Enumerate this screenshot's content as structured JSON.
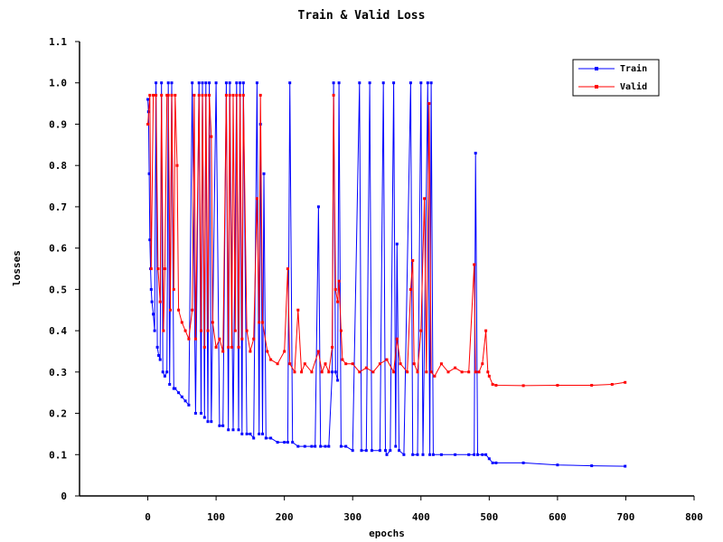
{
  "chart_data": {
    "type": "line",
    "title": "Train & Valid Loss",
    "xlabel": "epochs",
    "ylabel": "losses",
    "xlim": [
      -100,
      800
    ],
    "ylim": [
      0,
      1.1
    ],
    "xticks": [
      0,
      100,
      200,
      300,
      400,
      500,
      600,
      700,
      800
    ],
    "yticks": [
      0,
      0.1,
      0.2,
      0.3,
      0.4,
      0.5,
      0.6,
      0.7,
      0.8,
      0.9,
      1.0,
      1.1
    ],
    "ytick_labels": [
      "0",
      "0.1",
      "0.2",
      "0.3",
      "0.4",
      "0.5",
      "0.6",
      "0.7",
      "0.8",
      "0.9",
      "1.0",
      "1.1"
    ],
    "grid": false,
    "legend_position": "top-right",
    "series": [
      {
        "name": "Train",
        "color": "#0000ff",
        "points": [
          [
            0,
            0.96
          ],
          [
            1,
            0.93
          ],
          [
            2,
            0.78
          ],
          [
            3,
            0.62
          ],
          [
            4,
            0.55
          ],
          [
            5,
            0.5
          ],
          [
            6,
            0.47
          ],
          [
            8,
            0.44
          ],
          [
            10,
            0.4
          ],
          [
            12,
            1.0
          ],
          [
            14,
            0.36
          ],
          [
            16,
            0.34
          ],
          [
            18,
            0.33
          ],
          [
            20,
            1.0
          ],
          [
            22,
            0.3
          ],
          [
            25,
            0.29
          ],
          [
            28,
            0.3
          ],
          [
            30,
            1.0
          ],
          [
            32,
            0.27
          ],
          [
            35,
            1.0
          ],
          [
            38,
            0.26
          ],
          [
            40,
            0.26
          ],
          [
            45,
            0.25
          ],
          [
            50,
            0.24
          ],
          [
            55,
            0.23
          ],
          [
            60,
            0.22
          ],
          [
            65,
            1.0
          ],
          [
            70,
            0.2
          ],
          [
            75,
            1.0
          ],
          [
            78,
            0.2
          ],
          [
            80,
            1.0
          ],
          [
            83,
            0.19
          ],
          [
            85,
            1.0
          ],
          [
            88,
            0.18
          ],
          [
            90,
            1.0
          ],
          [
            93,
            0.18
          ],
          [
            100,
            1.0
          ],
          [
            105,
            0.17
          ],
          [
            110,
            0.17
          ],
          [
            115,
            1.0
          ],
          [
            118,
            0.16
          ],
          [
            120,
            1.0
          ],
          [
            125,
            0.16
          ],
          [
            130,
            1.0
          ],
          [
            133,
            0.16
          ],
          [
            135,
            1.0
          ],
          [
            138,
            0.15
          ],
          [
            140,
            1.0
          ],
          [
            145,
            0.15
          ],
          [
            150,
            0.15
          ],
          [
            155,
            0.14
          ],
          [
            160,
            1.0
          ],
          [
            163,
            0.15
          ],
          [
            165,
            0.9
          ],
          [
            168,
            0.15
          ],
          [
            170,
            0.78
          ],
          [
            173,
            0.14
          ],
          [
            180,
            0.14
          ],
          [
            190,
            0.13
          ],
          [
            200,
            0.13
          ],
          [
            205,
            0.13
          ],
          [
            208,
            1.0
          ],
          [
            212,
            0.13
          ],
          [
            220,
            0.12
          ],
          [
            230,
            0.12
          ],
          [
            240,
            0.12
          ],
          [
            245,
            0.12
          ],
          [
            250,
            0.7
          ],
          [
            253,
            0.12
          ],
          [
            260,
            0.12
          ],
          [
            265,
            0.12
          ],
          [
            270,
            0.3
          ],
          [
            272,
            1.0
          ],
          [
            275,
            0.3
          ],
          [
            278,
            0.28
          ],
          [
            280,
            1.0
          ],
          [
            283,
            0.12
          ],
          [
            290,
            0.12
          ],
          [
            300,
            0.11
          ],
          [
            310,
            1.0
          ],
          [
            313,
            0.11
          ],
          [
            320,
            0.11
          ],
          [
            325,
            1.0
          ],
          [
            328,
            0.11
          ],
          [
            340,
            0.11
          ],
          [
            345,
            1.0
          ],
          [
            348,
            0.11
          ],
          [
            350,
            0.1
          ],
          [
            355,
            0.11
          ],
          [
            360,
            1.0
          ],
          [
            363,
            0.12
          ],
          [
            365,
            0.61
          ],
          [
            368,
            0.11
          ],
          [
            375,
            0.1
          ],
          [
            385,
            1.0
          ],
          [
            388,
            0.1
          ],
          [
            395,
            0.1
          ],
          [
            400,
            1.0
          ],
          [
            403,
            0.1
          ],
          [
            410,
            1.0
          ],
          [
            413,
            0.1
          ],
          [
            415,
            1.0
          ],
          [
            418,
            0.1
          ],
          [
            430,
            0.1
          ],
          [
            450,
            0.1
          ],
          [
            470,
            0.1
          ],
          [
            478,
            0.1
          ],
          [
            480,
            0.83
          ],
          [
            483,
            0.1
          ],
          [
            490,
            0.1
          ],
          [
            495,
            0.1
          ],
          [
            500,
            0.09
          ],
          [
            505,
            0.08
          ],
          [
            510,
            0.08
          ],
          [
            550,
            0.08
          ],
          [
            600,
            0.075
          ],
          [
            650,
            0.073
          ],
          [
            699,
            0.072
          ]
        ]
      },
      {
        "name": "Valid",
        "color": "#ff0000",
        "points": [
          [
            0,
            0.9
          ],
          [
            3,
            0.97
          ],
          [
            5,
            0.55
          ],
          [
            8,
            0.97
          ],
          [
            12,
            0.97
          ],
          [
            15,
            0.55
          ],
          [
            18,
            0.47
          ],
          [
            20,
            0.97
          ],
          [
            23,
            0.4
          ],
          [
            25,
            0.55
          ],
          [
            28,
            0.97
          ],
          [
            30,
            0.97
          ],
          [
            33,
            0.45
          ],
          [
            35,
            0.97
          ],
          [
            38,
            0.5
          ],
          [
            40,
            0.97
          ],
          [
            43,
            0.8
          ],
          [
            45,
            0.45
          ],
          [
            50,
            0.42
          ],
          [
            55,
            0.4
          ],
          [
            60,
            0.38
          ],
          [
            65,
            0.45
          ],
          [
            68,
            0.97
          ],
          [
            70,
            0.38
          ],
          [
            75,
            0.97
          ],
          [
            78,
            0.4
          ],
          [
            80,
            0.97
          ],
          [
            83,
            0.36
          ],
          [
            85,
            0.97
          ],
          [
            88,
            0.4
          ],
          [
            90,
            0.97
          ],
          [
            93,
            0.87
          ],
          [
            95,
            0.42
          ],
          [
            100,
            0.36
          ],
          [
            105,
            0.38
          ],
          [
            110,
            0.35
          ],
          [
            115,
            0.97
          ],
          [
            118,
            0.36
          ],
          [
            120,
            0.97
          ],
          [
            123,
            0.36
          ],
          [
            125,
            0.97
          ],
          [
            128,
            0.4
          ],
          [
            130,
            0.97
          ],
          [
            133,
            0.36
          ],
          [
            135,
            0.97
          ],
          [
            138,
            0.38
          ],
          [
            140,
            0.97
          ],
          [
            145,
            0.4
          ],
          [
            150,
            0.35
          ],
          [
            155,
            0.38
          ],
          [
            160,
            0.72
          ],
          [
            163,
            0.42
          ],
          [
            165,
            0.97
          ],
          [
            168,
            0.42
          ],
          [
            175,
            0.35
          ],
          [
            180,
            0.33
          ],
          [
            190,
            0.32
          ],
          [
            200,
            0.35
          ],
          [
            205,
            0.55
          ],
          [
            208,
            0.32
          ],
          [
            215,
            0.3
          ],
          [
            220,
            0.45
          ],
          [
            225,
            0.3
          ],
          [
            230,
            0.32
          ],
          [
            240,
            0.3
          ],
          [
            250,
            0.35
          ],
          [
            255,
            0.3
          ],
          [
            260,
            0.32
          ],
          [
            265,
            0.3
          ],
          [
            270,
            0.36
          ],
          [
            272,
            0.97
          ],
          [
            275,
            0.5
          ],
          [
            278,
            0.47
          ],
          [
            280,
            0.52
          ],
          [
            283,
            0.4
          ],
          [
            285,
            0.33
          ],
          [
            290,
            0.32
          ],
          [
            300,
            0.32
          ],
          [
            310,
            0.3
          ],
          [
            320,
            0.31
          ],
          [
            330,
            0.3
          ],
          [
            340,
            0.32
          ],
          [
            350,
            0.33
          ],
          [
            360,
            0.3
          ],
          [
            365,
            0.38
          ],
          [
            370,
            0.32
          ],
          [
            380,
            0.3
          ],
          [
            385,
            0.5
          ],
          [
            388,
            0.57
          ],
          [
            390,
            0.32
          ],
          [
            395,
            0.3
          ],
          [
            400,
            0.4
          ],
          [
            405,
            0.72
          ],
          [
            408,
            0.3
          ],
          [
            412,
            0.95
          ],
          [
            415,
            0.3
          ],
          [
            420,
            0.29
          ],
          [
            430,
            0.32
          ],
          [
            440,
            0.3
          ],
          [
            450,
            0.31
          ],
          [
            460,
            0.3
          ],
          [
            470,
            0.3
          ],
          [
            478,
            0.56
          ],
          [
            480,
            0.3
          ],
          [
            485,
            0.3
          ],
          [
            490,
            0.32
          ],
          [
            495,
            0.4
          ],
          [
            498,
            0.3
          ],
          [
            500,
            0.29
          ],
          [
            505,
            0.27
          ],
          [
            510,
            0.268
          ],
          [
            550,
            0.267
          ],
          [
            600,
            0.268
          ],
          [
            650,
            0.268
          ],
          [
            680,
            0.27
          ],
          [
            699,
            0.275
          ]
        ]
      }
    ]
  }
}
